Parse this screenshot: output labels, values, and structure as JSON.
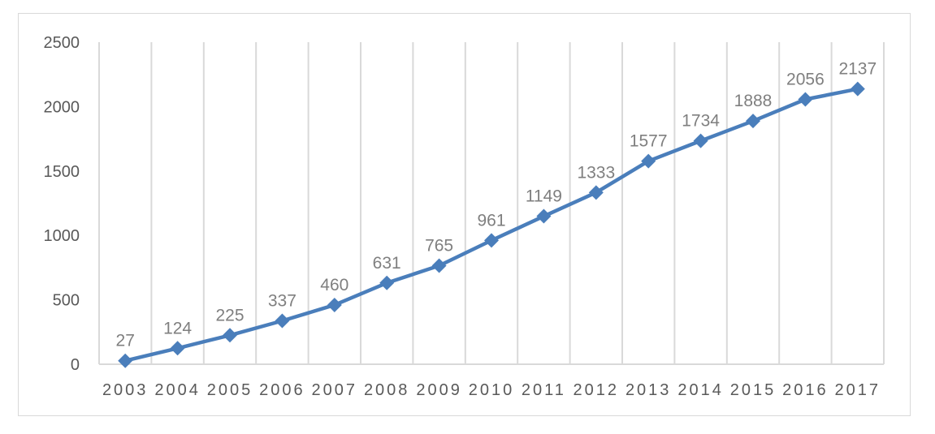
{
  "chart_data": {
    "type": "line",
    "title": "",
    "xlabel": "",
    "ylabel": "",
    "categories": [
      "2003",
      "2004",
      "2005",
      "2006",
      "2007",
      "2008",
      "2009",
      "2010",
      "2011",
      "2012",
      "2013",
      "2014",
      "2015",
      "2016",
      "2017"
    ],
    "series": [
      {
        "values": [
          27,
          124,
          225,
          337,
          460,
          631,
          765,
          961,
          1149,
          1333,
          1577,
          1734,
          1888,
          2056,
          2137
        ]
      }
    ],
    "data_labels": [
      "27",
      "124",
      "225",
      "337",
      "460",
      "631",
      "765",
      "961",
      "1149",
      "1333",
      "1577",
      "1734",
      "1888",
      "2056",
      "2137"
    ],
    "ylim": [
      0,
      2500
    ],
    "y_ticks": [
      "0",
      "500",
      "1000",
      "1500",
      "2000",
      "2500"
    ],
    "grid": "vertical",
    "legend": "none",
    "marker": "diamond",
    "colors": {
      "line": "#4a7ebb",
      "grid": "#d9d9d9",
      "label": "#7f7f7f",
      "axis_text": "#595959"
    }
  }
}
